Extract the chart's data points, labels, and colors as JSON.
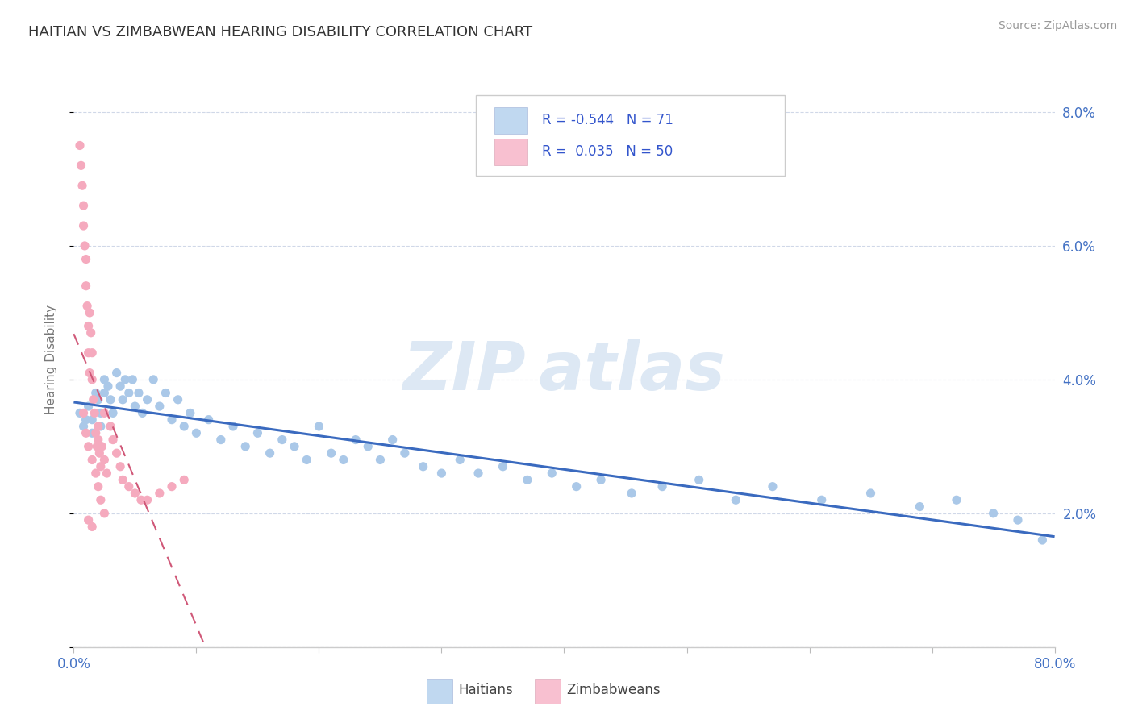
{
  "title": "HAITIAN VS ZIMBABWEAN HEARING DISABILITY CORRELATION CHART",
  "source": "Source: ZipAtlas.com",
  "ylabel": "Hearing Disability",
  "xmin": 0.0,
  "xmax": 0.8,
  "ymin": 0.0,
  "ymax": 0.086,
  "yticks": [
    0.0,
    0.02,
    0.04,
    0.06,
    0.08
  ],
  "ytick_labels": [
    "",
    "2.0%",
    "4.0%",
    "6.0%",
    "8.0%"
  ],
  "haitian_dot_color": "#aac8e8",
  "haitian_line_color": "#3a6abf",
  "zimbabwean_dot_color": "#f5aabe",
  "zimbabwean_line_color": "#d05878",
  "haitian_R": -0.544,
  "haitian_N": 71,
  "zimbabwean_R": 0.035,
  "zimbabwean_N": 50,
  "legend_text_color": "#3355cc",
  "legend_label_color": "#333333",
  "legend_haitian_bg": "#c0d8f0",
  "legend_zimbabwean_bg": "#f8c0d0",
  "watermark_color": "#dde8f4",
  "haitian_x": [
    0.005,
    0.008,
    0.01,
    0.012,
    0.015,
    0.015,
    0.018,
    0.02,
    0.022,
    0.022,
    0.025,
    0.025,
    0.028,
    0.03,
    0.032,
    0.035,
    0.038,
    0.04,
    0.042,
    0.045,
    0.048,
    0.05,
    0.053,
    0.056,
    0.06,
    0.065,
    0.07,
    0.075,
    0.08,
    0.085,
    0.09,
    0.095,
    0.1,
    0.11,
    0.12,
    0.13,
    0.14,
    0.15,
    0.16,
    0.17,
    0.18,
    0.19,
    0.2,
    0.21,
    0.22,
    0.23,
    0.24,
    0.25,
    0.26,
    0.27,
    0.285,
    0.3,
    0.315,
    0.33,
    0.35,
    0.37,
    0.39,
    0.41,
    0.43,
    0.455,
    0.48,
    0.51,
    0.54,
    0.57,
    0.61,
    0.65,
    0.69,
    0.72,
    0.75,
    0.77,
    0.79
  ],
  "haitian_y": [
    0.035,
    0.033,
    0.034,
    0.036,
    0.034,
    0.032,
    0.038,
    0.037,
    0.035,
    0.033,
    0.04,
    0.038,
    0.039,
    0.037,
    0.035,
    0.041,
    0.039,
    0.037,
    0.04,
    0.038,
    0.04,
    0.036,
    0.038,
    0.035,
    0.037,
    0.04,
    0.036,
    0.038,
    0.034,
    0.037,
    0.033,
    0.035,
    0.032,
    0.034,
    0.031,
    0.033,
    0.03,
    0.032,
    0.029,
    0.031,
    0.03,
    0.028,
    0.033,
    0.029,
    0.028,
    0.031,
    0.03,
    0.028,
    0.031,
    0.029,
    0.027,
    0.026,
    0.028,
    0.026,
    0.027,
    0.025,
    0.026,
    0.024,
    0.025,
    0.023,
    0.024,
    0.025,
    0.022,
    0.024,
    0.022,
    0.023,
    0.021,
    0.022,
    0.02,
    0.019,
    0.016
  ],
  "zimbabwean_x": [
    0.005,
    0.006,
    0.007,
    0.008,
    0.008,
    0.009,
    0.01,
    0.01,
    0.011,
    0.012,
    0.012,
    0.013,
    0.013,
    0.014,
    0.015,
    0.015,
    0.016,
    0.017,
    0.018,
    0.019,
    0.02,
    0.02,
    0.021,
    0.022,
    0.023,
    0.025,
    0.025,
    0.027,
    0.03,
    0.032,
    0.035,
    0.038,
    0.04,
    0.045,
    0.05,
    0.055,
    0.06,
    0.07,
    0.08,
    0.09,
    0.008,
    0.01,
    0.012,
    0.015,
    0.018,
    0.02,
    0.022,
    0.025,
    0.012,
    0.015
  ],
  "zimbabwean_y": [
    0.075,
    0.072,
    0.069,
    0.066,
    0.063,
    0.06,
    0.058,
    0.054,
    0.051,
    0.048,
    0.044,
    0.041,
    0.05,
    0.047,
    0.044,
    0.04,
    0.037,
    0.035,
    0.032,
    0.03,
    0.033,
    0.031,
    0.029,
    0.027,
    0.03,
    0.035,
    0.028,
    0.026,
    0.033,
    0.031,
    0.029,
    0.027,
    0.025,
    0.024,
    0.023,
    0.022,
    0.022,
    0.023,
    0.024,
    0.025,
    0.035,
    0.032,
    0.03,
    0.028,
    0.026,
    0.024,
    0.022,
    0.02,
    0.019,
    0.018
  ]
}
